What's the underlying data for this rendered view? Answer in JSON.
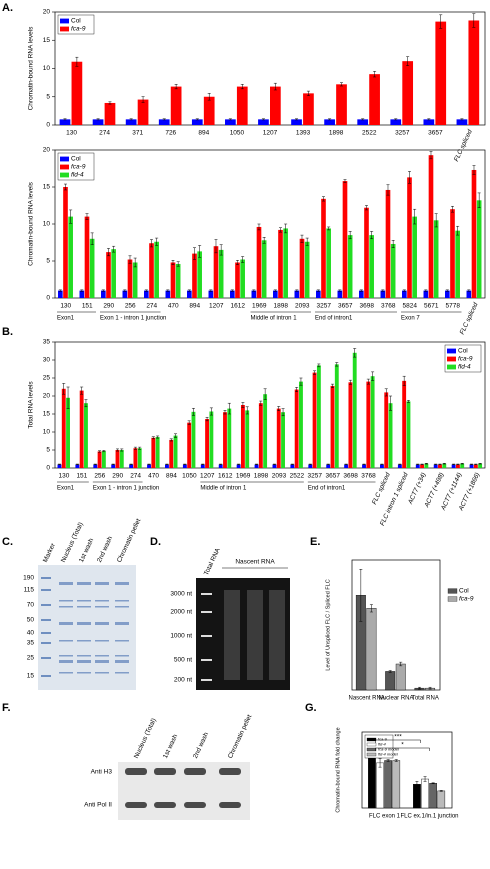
{
  "chart_data": [
    {
      "type": "bar",
      "panel": "A.",
      "y_label": "Chromatin-bound RNA levels",
      "categories": [
        "130",
        "274",
        "371",
        "726",
        "894",
        "1050",
        "1207",
        "1393",
        "1898",
        "2522",
        "3257",
        "3657",
        "FLC spliced"
      ],
      "series": [
        {
          "name": "Col",
          "color": "#0000ff",
          "values": [
            1,
            1,
            1,
            1,
            1,
            1,
            1,
            1,
            1,
            1,
            1,
            1,
            1
          ],
          "errors": [
            0.1,
            0.1,
            0.1,
            0.1,
            0.1,
            0.1,
            0.1,
            0.1,
            0.1,
            0.1,
            0.1,
            0.1,
            0.1
          ]
        },
        {
          "name": "fca-9",
          "color": "#ff0000",
          "values": [
            11.2,
            3.9,
            4.5,
            6.8,
            5.0,
            6.8,
            6.8,
            5.6,
            7.2,
            9.0,
            11.3,
            18.3,
            18.5
          ],
          "errors": [
            0.8,
            0.2,
            0.5,
            0.4,
            0.6,
            0.4,
            0.6,
            0.4,
            0.3,
            0.5,
            0.8,
            1.2,
            1.2
          ]
        }
      ],
      "ylim": [
        0,
        20
      ],
      "yticks": [
        0,
        5,
        10,
        15,
        20
      ],
      "legend": "upper left"
    },
    {
      "type": "bar",
      "y_label": "Chromatin-bound RNA levels",
      "categories": [
        "130",
        "151",
        "290",
        "256",
        "274",
        "470",
        "894",
        "1207",
        "1612",
        "1969",
        "1898",
        "2093",
        "3257",
        "3657",
        "3698",
        "3768",
        "5824",
        "5671",
        "5778",
        "FLC spliced"
      ],
      "group_labels": [
        "Exon1",
        "Exon 1 - intron 1 junction",
        "Middle of intron 1",
        "End of intron1",
        "Exon 7"
      ],
      "series": [
        {
          "name": "Col",
          "color": "#0000ff",
          "values": [
            1,
            1,
            1,
            1,
            1,
            1,
            1,
            1,
            1,
            1,
            1,
            1,
            1,
            1,
            1,
            1,
            1,
            1,
            1,
            1
          ],
          "errors": [
            0.1,
            0.1,
            0.1,
            0.1,
            0.1,
            0.1,
            0.1,
            0.1,
            0.1,
            0.1,
            0.1,
            0.1,
            0.1,
            0.1,
            0.1,
            0.1,
            0.1,
            0.1,
            0.1,
            0.1
          ]
        },
        {
          "name": "fca-9",
          "color": "#ff0000",
          "values": [
            15,
            11,
            6.2,
            5.2,
            7.4,
            4.8,
            6,
            7,
            4.8,
            9.6,
            9.2,
            8,
            13.4,
            15.8,
            12.2,
            14.6,
            16.3,
            19.3,
            12,
            17.3
          ],
          "errors": [
            0.4,
            0.4,
            0.5,
            0.5,
            0.5,
            0.3,
            0.8,
            0.9,
            0.3,
            0.4,
            0.3,
            0.5,
            0.3,
            0.2,
            0.3,
            0.7,
            0.8,
            0.5,
            0.4,
            0.6
          ]
        },
        {
          "name": "fld-4",
          "color": "#22dd22",
          "values": [
            11,
            8,
            6.6,
            4.8,
            7.6,
            4.6,
            6.3,
            6.5,
            5.2,
            7.8,
            9.4,
            7.6,
            9.4,
            8.5,
            8.5,
            7.3,
            11,
            10.5,
            9.1,
            13.2
          ],
          "errors": [
            0.9,
            0.8,
            0.4,
            0.6,
            0.5,
            0.3,
            0.8,
            0.7,
            0.4,
            0.4,
            0.6,
            0.5,
            0.2,
            0.5,
            0.5,
            0.5,
            1,
            0.9,
            0.6,
            1
          ]
        }
      ],
      "ylim": [
        0,
        20
      ],
      "yticks": [
        0,
        5,
        10,
        15,
        20
      ],
      "legend": "upper left"
    },
    {
      "type": "bar",
      "panel": "B.",
      "y_label": "Total RNA levels",
      "categories": [
        "130",
        "151",
        "256",
        "290",
        "274",
        "470",
        "894",
        "1050",
        "1207",
        "1612",
        "1969",
        "1898",
        "2093",
        "2522",
        "3257",
        "3657",
        "3698",
        "3768",
        "FLC spliced",
        "FLC intron 1 spliced",
        "ACT7 (+34)",
        "ACT7 (+498)",
        "ACT7 (+1144)",
        "ACT7 (+1866)"
      ],
      "group_labels": [
        "Exon1",
        "Exon 1 - intron 1 junction",
        "Middle of intron 1",
        "End of intron1"
      ],
      "series": [
        {
          "name": "Col",
          "color": "#0000ff",
          "values": [
            1,
            1,
            1,
            1,
            1,
            1,
            1,
            1,
            1,
            1,
            1,
            1,
            1,
            1,
            1,
            1,
            1,
            1,
            1,
            1,
            1,
            1,
            1,
            1
          ],
          "errors": [
            0.1,
            0.1,
            0.1,
            0.1,
            0.1,
            0.1,
            0.1,
            0.1,
            0.1,
            0.1,
            0.1,
            0.1,
            0.1,
            0.1,
            0.1,
            0.1,
            0.1,
            0.1,
            0.1,
            0.1,
            0.1,
            0.1,
            0.1,
            0.1
          ]
        },
        {
          "name": "fca-9",
          "color": "#ff0000",
          "values": [
            22,
            21.5,
            4.6,
            5,
            5.5,
            8.4,
            7.8,
            12.6,
            13.6,
            15.5,
            17.5,
            18,
            16.5,
            21.8,
            26.5,
            22.8,
            23.8,
            24,
            21,
            24.2,
            1,
            1,
            1,
            1
          ],
          "errors": [
            1.5,
            1,
            0.2,
            0.3,
            0.3,
            0.3,
            0.3,
            0.5,
            0.5,
            0.5,
            0.7,
            0.6,
            0.6,
            0.6,
            0.5,
            0.5,
            0.6,
            0.7,
            1,
            1.3,
            0.1,
            0.1,
            0.1,
            0.1
          ]
        },
        {
          "name": "fld-4",
          "color": "#22dd22",
          "values": [
            19.5,
            18,
            4.7,
            5,
            5.5,
            8.6,
            9,
            15.6,
            15.7,
            16.5,
            16,
            20.5,
            15.5,
            24,
            28.5,
            28.8,
            32,
            25.5,
            18,
            18.5,
            1.2,
            1.2,
            1.2,
            1.2
          ],
          "errors": [
            3,
            1,
            0.2,
            0.3,
            0.3,
            0.3,
            0.5,
            1,
            1,
            1.5,
            1,
            1.5,
            1,
            1,
            0.4,
            0.5,
            1.2,
            1.2,
            2,
            0.3,
            0.1,
            0.1,
            0.1,
            0.1
          ]
        }
      ],
      "ylim": [
        0,
        35
      ],
      "yticks": [
        0,
        5,
        10,
        15,
        20,
        25,
        30,
        35
      ],
      "legend": "upper right"
    },
    {
      "type": "bar",
      "panel": "E.",
      "y_label": "Level of Unspliced FLC / Spliced FLC",
      "categories": [
        "Nascent RNA",
        "Nuclear RNA",
        "Total RNA"
      ],
      "series": [
        {
          "name": "Col",
          "color": "#555555",
          "values": [
            0.51,
            0.1,
            0.01
          ],
          "errors": [
            0.14,
            0.005,
            0.005
          ]
        },
        {
          "name": "fca-9",
          "color": "#aaaaaa",
          "values": [
            0.44,
            0.14,
            0.01
          ],
          "errors": [
            0.02,
            0.01,
            0.005
          ]
        }
      ],
      "ylim": [
        0,
        0.7
      ],
      "legend": "right"
    },
    {
      "type": "bar",
      "panel": "G.",
      "y_label": "Chromatin-bound RNA fold change",
      "categories": [
        "FLC exon 1",
        "FLC ex.1/in.1 junction"
      ],
      "series": [
        {
          "name": "fca-9",
          "color": "#000000",
          "values": [
            11.5,
            5
          ],
          "errors": [
            1.2,
            0.6
          ]
        },
        {
          "name": "fld-4",
          "color": "#ffffff",
          "values": [
            9.5,
            6.1
          ],
          "errors": [
            0.9,
            0.5
          ]
        },
        {
          "name": "fca-9 model",
          "color": "#666666",
          "values": [
            10,
            5.2
          ],
          "errors": [
            0.2,
            0.1
          ]
        },
        {
          "name": "fld-4 model",
          "color": "#bbbbbb",
          "values": [
            10,
            3.6
          ],
          "errors": [
            0.2,
            0.1
          ]
        }
      ],
      "annotations": [
        "***",
        "*"
      ],
      "ylim": [
        0,
        16
      ],
      "legend": "upper left"
    }
  ],
  "images": [
    {
      "panel": "C.",
      "lanes": [
        "Marker",
        "Nucleus (Total)",
        "1st wash",
        "2nd wash",
        "Chromatin pellet"
      ],
      "markers": [
        "190",
        "115",
        "70",
        "50",
        "40",
        "35",
        "25",
        "15"
      ]
    },
    {
      "panel": "D.",
      "lanes": [
        "Total RNA",
        "Nascent RNA"
      ],
      "markers": [
        "3000 nt",
        "2000 nt",
        "1000 nt",
        "500 nt",
        "200 nt"
      ]
    },
    {
      "panel": "F.",
      "lanes": [
        "Nucleus (Total)",
        "1st wash",
        "2nd wash",
        "Chromatin pellet"
      ],
      "rows": [
        "Anti H3",
        "Anti Pol II"
      ]
    }
  ]
}
